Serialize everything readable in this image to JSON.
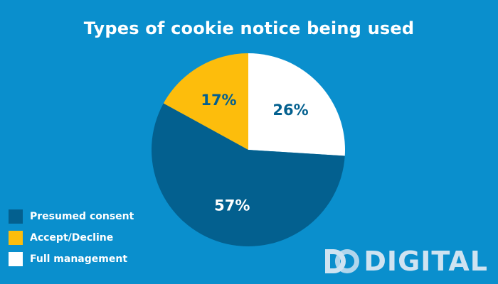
{
  "colors": {
    "background": "#0a8fcd",
    "presumed_consent": "#03608f",
    "accept_decline": "#fdbd0c",
    "full_management": "#ffffff",
    "logo": "#cfe3f1"
  },
  "logo": {
    "text": "DIGITAL"
  },
  "chart_data": {
    "type": "pie",
    "title": "Types of cookie notice being used",
    "legend_placement": "bottom-left",
    "slices": [
      {
        "name": "Full management",
        "value": 26,
        "label": "26%",
        "color": "#ffffff",
        "label_color": "#03608f"
      },
      {
        "name": "Presumed consent",
        "value": 57,
        "label": "57%",
        "color": "#03608f",
        "label_color": "#ffffff"
      },
      {
        "name": "Accept/Decline",
        "value": 17,
        "label": "17%",
        "color": "#fdbd0c",
        "label_color": "#03608f"
      }
    ],
    "legend": [
      {
        "name": "Presumed consent",
        "color": "#03608f"
      },
      {
        "name": "Accept/Decline",
        "color": "#fdbd0c"
      },
      {
        "name": "Full management",
        "color": "#ffffff"
      }
    ]
  }
}
